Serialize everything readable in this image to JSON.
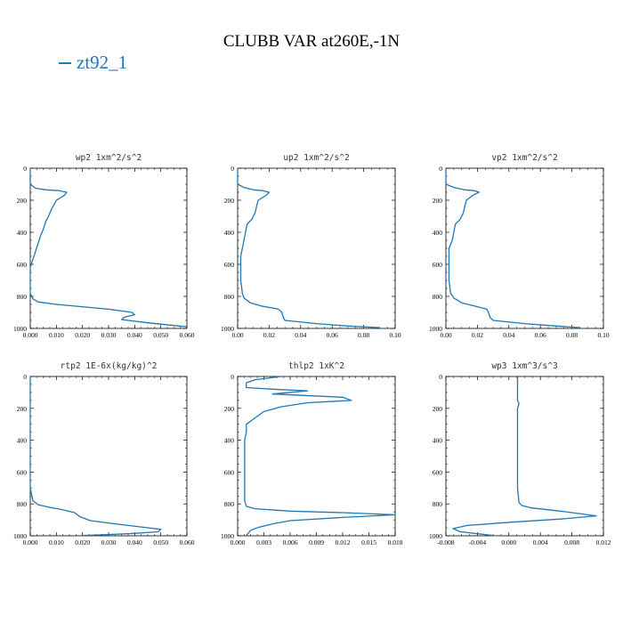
{
  "suptitle": "CLUBB VAR at260E,-1N",
  "legend_label": "zt92_1",
  "series_color": "#1f77b4",
  "chart_data": [
    {
      "type": "line",
      "title": "wp2   1xm^2/s^2",
      "xlim": [
        0,
        0.06
      ],
      "xticks": [
        "0.000",
        "0.010",
        "0.020",
        "0.030",
        "0.040",
        "0.050",
        "0.060"
      ],
      "ylim": [
        1000,
        0
      ],
      "yticks": [
        "0",
        "200",
        "400",
        "600",
        "800",
        "1000"
      ],
      "series": [
        {
          "x": [
            0.0,
            0.0,
            0.002,
            0.006,
            0.011,
            0.014,
            0.013,
            0.01,
            0.009,
            0.008,
            0.007,
            0.006,
            0.005,
            0.004,
            0.003,
            0.002,
            0.001,
            0.0,
            0.0,
            0.0,
            0.001,
            0.003,
            0.01,
            0.03,
            0.039,
            0.04,
            0.036,
            0.035,
            0.045,
            0.06
          ],
          "y": [
            0,
            100,
            125,
            135,
            140,
            150,
            170,
            200,
            230,
            260,
            300,
            330,
            380,
            420,
            470,
            520,
            570,
            620,
            700,
            780,
            815,
            835,
            850,
            880,
            900,
            915,
            930,
            945,
            965,
            990
          ]
        }
      ]
    },
    {
      "type": "line",
      "title": "up2   1xm^2/s^2",
      "xlim": [
        0,
        0.1
      ],
      "xticks": [
        "0.00",
        "0.02",
        "0.04",
        "0.06",
        "0.08",
        "0.10"
      ],
      "ylim": [
        1000,
        0
      ],
      "yticks": [
        "0",
        "200",
        "400",
        "600",
        "800",
        "1000"
      ],
      "series": [
        {
          "x": [
            0.0,
            0.0,
            0.004,
            0.01,
            0.016,
            0.02,
            0.018,
            0.013,
            0.012,
            0.011,
            0.009,
            0.006,
            0.005,
            0.004,
            0.003,
            0.002,
            0.002,
            0.002,
            0.003,
            0.004,
            0.008,
            0.015,
            0.026,
            0.028,
            0.029,
            0.03,
            0.05,
            0.07,
            0.09
          ],
          "y": [
            0,
            100,
            120,
            135,
            140,
            150,
            170,
            200,
            240,
            280,
            320,
            350,
            400,
            450,
            500,
            550,
            600,
            700,
            780,
            810,
            840,
            860,
            880,
            900,
            930,
            950,
            970,
            985,
            995
          ]
        }
      ]
    },
    {
      "type": "line",
      "title": "vp2   1xm^2/s^2",
      "xlim": [
        0,
        0.1
      ],
      "xticks": [
        "0.00",
        "0.02",
        "0.04",
        "0.06",
        "0.08",
        "0.10"
      ],
      "ylim": [
        1000,
        0
      ],
      "yticks": [
        "0",
        "200",
        "400",
        "600",
        "800",
        "1000"
      ],
      "series": [
        {
          "x": [
            0.0,
            0.0,
            0.005,
            0.012,
            0.018,
            0.021,
            0.017,
            0.013,
            0.012,
            0.011,
            0.009,
            0.006,
            0.005,
            0.004,
            0.002,
            0.002,
            0.002,
            0.002,
            0.003,
            0.005,
            0.01,
            0.018,
            0.026,
            0.027,
            0.028,
            0.03,
            0.05,
            0.07,
            0.085
          ],
          "y": [
            0,
            100,
            120,
            135,
            140,
            150,
            170,
            200,
            240,
            280,
            320,
            350,
            400,
            450,
            500,
            550,
            600,
            700,
            780,
            810,
            840,
            860,
            880,
            900,
            930,
            950,
            970,
            985,
            995
          ]
        }
      ]
    },
    {
      "type": "line",
      "title": "rtp2   1E-6x(kg/kg)^2",
      "xlim": [
        0,
        0.06
      ],
      "xticks": [
        "0.000",
        "0.010",
        "0.020",
        "0.030",
        "0.040",
        "0.050",
        "0.060"
      ],
      "ylim": [
        1000,
        0
      ],
      "yticks": [
        "0",
        "200",
        "400",
        "600",
        "800",
        "1000"
      ],
      "series": [
        {
          "x": [
            0.0,
            0.0,
            0.0,
            0.0,
            0.0,
            0.001,
            0.003,
            0.007,
            0.012,
            0.017,
            0.019,
            0.023,
            0.035,
            0.045,
            0.05,
            0.049,
            0.04,
            0.03,
            0.02
          ],
          "y": [
            0,
            200,
            400,
            600,
            700,
            780,
            805,
            820,
            835,
            855,
            880,
            905,
            930,
            950,
            960,
            975,
            985,
            992,
            998
          ]
        }
      ]
    },
    {
      "type": "line",
      "title": "thlp2   1xK^2",
      "xlim": [
        0,
        0.018
      ],
      "xticks": [
        "0.000",
        "0.003",
        "0.006",
        "0.009",
        "0.012",
        "0.015",
        "0.018"
      ],
      "ylim": [
        1000,
        0
      ],
      "yticks": [
        "0",
        "200",
        "400",
        "600",
        "800",
        "1000"
      ],
      "series": [
        {
          "x": [
            0.005,
            0.002,
            0.001,
            0.001,
            0.004,
            0.008,
            0.004,
            0.012,
            0.013,
            0.008,
            0.005,
            0.003,
            0.002,
            0.001,
            0.001,
            0.0008,
            0.0008,
            0.0008,
            0.0008,
            0.0008,
            0.001,
            0.002,
            0.006,
            0.012,
            0.018,
            0.012,
            0.006,
            0.004,
            0.0025,
            0.0015,
            0.0012,
            0.001
          ],
          "y": [
            0,
            20,
            40,
            70,
            80,
            90,
            110,
            130,
            150,
            165,
            190,
            220,
            260,
            300,
            350,
            400,
            500,
            600,
            700,
            780,
            815,
            830,
            845,
            855,
            868,
            885,
            905,
            925,
            945,
            965,
            985,
            1000
          ]
        }
      ]
    },
    {
      "type": "line",
      "title": "wp3   1xm^3/s^3",
      "xlim": [
        -0.01,
        0.012
      ],
      "xticks": [
        "-0.008",
        "-0.004",
        "0.000",
        "0.004",
        "0.008",
        "0.012"
      ],
      "ylim": [
        1000,
        0
      ],
      "yticks": [
        "0",
        "200",
        "400",
        "600",
        "800",
        "1000"
      ],
      "series": [
        {
          "x": [
            0.0,
            0.0,
            0.0002,
            0.0,
            0.0,
            0.0,
            0.0,
            0.0,
            0.0002,
            0.0006,
            0.002,
            0.006,
            0.011,
            0.006,
            -0.001,
            -0.007,
            -0.009,
            -0.008,
            -0.005,
            -0.003
          ],
          "y": [
            0,
            150,
            170,
            200,
            300,
            400,
            500,
            700,
            790,
            810,
            825,
            845,
            875,
            895,
            915,
            935,
            955,
            975,
            990,
            1000
          ]
        }
      ]
    }
  ]
}
